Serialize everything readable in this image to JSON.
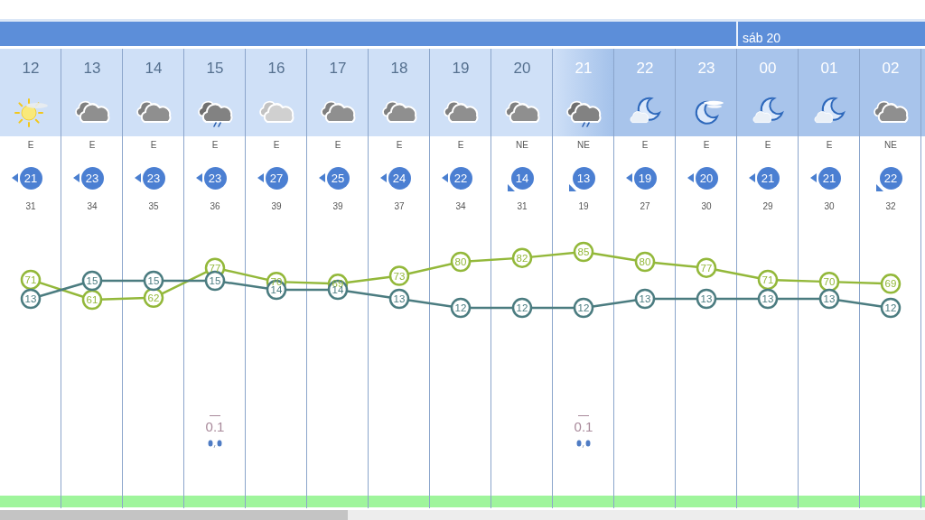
{
  "chart_data": {
    "type": "line",
    "categories": [
      "12",
      "13",
      "14",
      "15",
      "16",
      "17",
      "18",
      "19",
      "20",
      "21",
      "22",
      "23",
      "00",
      "01",
      "02"
    ],
    "series": [
      {
        "color": "#93b83a",
        "axis": "y",
        "values": [
          71,
          61,
          62,
          77,
          70,
          69,
          73,
          80,
          82,
          85,
          80,
          77,
          71,
          70,
          69
        ]
      },
      {
        "color": "#4b7c80",
        "axis": "y2",
        "values": [
          13,
          15,
          15,
          15,
          14,
          14,
          13,
          12,
          12,
          12,
          13,
          13,
          13,
          13,
          12
        ]
      },
      {
        "type": "bar",
        "color": "#a8899a",
        "axis": "y2",
        "values": [
          null,
          null,
          null,
          0.1,
          null,
          null,
          null,
          null,
          null,
          0.1,
          null,
          null,
          null,
          null,
          null
        ]
      }
    ],
    "marker": "circle",
    "data_labels": true,
    "tick_labels": "x",
    "annotations": [
      "sáb 20",
      "E",
      "E",
      "E",
      "E",
      "E",
      "E",
      "E",
      "E",
      "NE",
      "NE",
      "E",
      "E",
      "E",
      "E",
      "NE",
      "21",
      "23",
      "23",
      "23",
      "27",
      "25",
      "24",
      "22",
      "14",
      "13",
      "19",
      "20",
      "21",
      "21",
      "22",
      "31",
      "34",
      "35",
      "36",
      "39",
      "39",
      "37",
      "34",
      "31",
      "19",
      "27",
      "30",
      "29",
      "30",
      "32"
    ]
  }
}
